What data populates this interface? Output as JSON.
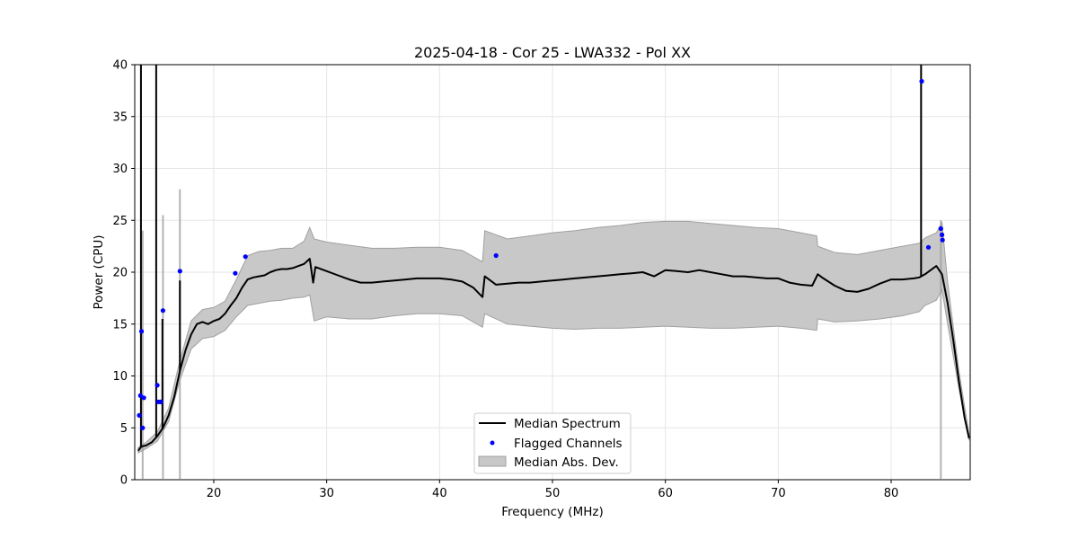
{
  "chart_data": {
    "type": "line",
    "title": "2025-04-18 - Cor 25 - LWA332 - Pol XX",
    "xlabel": "Frequency (MHz)",
    "ylabel": "Power (CPU)",
    "xlim": [
      13,
      87
    ],
    "ylim": [
      0,
      40
    ],
    "xticks": [
      20,
      30,
      40,
      50,
      60,
      70,
      80
    ],
    "yticks": [
      0,
      5,
      10,
      15,
      20,
      25,
      30,
      35,
      40
    ],
    "grid": true,
    "legend_position": "lower-center",
    "legend": [
      "Median Spectrum",
      "Flagged Channels",
      "Median Abs. Dev."
    ],
    "colors": {
      "median": "#000000",
      "flagged": "#0000ff",
      "band_fill": "#c8c8c8",
      "band_edge": "#a0a0a0"
    },
    "series": [
      {
        "name": "Median Spectrum",
        "x": [
          13.3,
          13.6,
          14.0,
          14.5,
          15.0,
          15.5,
          16.0,
          16.5,
          17.0,
          17.5,
          18.0,
          18.5,
          19.0,
          19.5,
          20.0,
          20.5,
          21.0,
          21.5,
          22.0,
          22.5,
          23.0,
          23.5,
          24.0,
          24.5,
          25.0,
          25.5,
          26.0,
          26.5,
          27.0,
          27.5,
          28.0,
          28.5,
          28.8,
          29.0,
          30.0,
          31.0,
          32.0,
          33.0,
          34.0,
          35.0,
          36.0,
          37.0,
          38.0,
          39.0,
          40.0,
          41.0,
          42.0,
          43.0,
          43.8,
          44.0,
          45.0,
          46.0,
          47.0,
          48.0,
          49.0,
          50.0,
          51.0,
          52.0,
          53.0,
          54.0,
          55.0,
          56.0,
          57.0,
          58.0,
          59.0,
          60.0,
          61.0,
          62.0,
          63.0,
          64.0,
          65.0,
          66.0,
          67.0,
          68.0,
          69.0,
          70.0,
          71.0,
          72.0,
          73.0,
          73.5,
          74.0,
          75.0,
          76.0,
          77.0,
          78.0,
          79.0,
          80.0,
          81.0,
          82.0,
          82.5,
          83.0,
          83.5,
          84.0,
          84.5,
          85.0,
          85.5,
          86.0,
          86.5,
          86.9
        ],
        "values": [
          2.8,
          3.2,
          3.3,
          3.6,
          4.2,
          5.0,
          6.2,
          8.0,
          10.5,
          12.5,
          14.0,
          15.0,
          15.2,
          15.0,
          15.3,
          15.5,
          16.0,
          16.8,
          17.5,
          18.5,
          19.3,
          19.5,
          19.6,
          19.7,
          20.0,
          20.2,
          20.3,
          20.3,
          20.4,
          20.6,
          20.8,
          21.3,
          19.0,
          20.5,
          20.1,
          19.7,
          19.3,
          19.0,
          19.0,
          19.1,
          19.2,
          19.3,
          19.4,
          19.4,
          19.4,
          19.3,
          19.1,
          18.5,
          17.6,
          19.6,
          18.8,
          18.9,
          19.0,
          19.0,
          19.1,
          19.2,
          19.3,
          19.4,
          19.5,
          19.6,
          19.7,
          19.8,
          19.9,
          20.0,
          19.6,
          20.2,
          20.1,
          20.0,
          20.2,
          20.0,
          19.8,
          19.6,
          19.6,
          19.5,
          19.4,
          19.4,
          19.0,
          18.8,
          18.7,
          19.8,
          19.4,
          18.7,
          18.2,
          18.1,
          18.4,
          18.9,
          19.3,
          19.3,
          19.4,
          19.5,
          19.8,
          20.2,
          20.6,
          19.8,
          17.0,
          13.5,
          9.5,
          6.0,
          4.0
        ]
      },
      {
        "name": "Median Abs. Dev.",
        "x": [
          13.3,
          14.0,
          15.0,
          16.0,
          17.0,
          18.0,
          19.0,
          20.0,
          21.0,
          22.0,
          23.0,
          24.0,
          25.0,
          26.0,
          27.0,
          28.0,
          28.5,
          28.9,
          30.0,
          32.0,
          34.0,
          36.0,
          38.0,
          40.0,
          42.0,
          43.8,
          44.0,
          46.0,
          48.0,
          50.0,
          52.0,
          54.0,
          56.0,
          58.0,
          60.0,
          62.0,
          64.0,
          66.0,
          68.0,
          70.0,
          72.0,
          73.4,
          73.5,
          75.0,
          77.0,
          79.0,
          81.0,
          82.5,
          83.0,
          84.0,
          84.5,
          85.0,
          86.0,
          86.9
        ],
        "upper": [
          3.1,
          3.6,
          4.6,
          6.9,
          11.5,
          15.3,
          16.4,
          16.6,
          17.2,
          19.3,
          21.6,
          22.0,
          22.1,
          22.3,
          22.3,
          23.0,
          24.3,
          23.2,
          22.9,
          22.6,
          22.3,
          22.3,
          22.4,
          22.4,
          22.1,
          21.0,
          24.0,
          23.2,
          23.5,
          23.8,
          24.0,
          24.3,
          24.5,
          24.8,
          24.9,
          24.9,
          24.7,
          24.5,
          24.3,
          24.2,
          23.8,
          23.5,
          22.5,
          21.9,
          21.7,
          22.1,
          22.5,
          22.8,
          23.3,
          23.8,
          24.8,
          19.0,
          10.5,
          4.4
        ],
        "lower": [
          2.6,
          3.0,
          3.7,
          5.6,
          9.6,
          12.6,
          13.6,
          13.8,
          14.4,
          15.7,
          16.8,
          17.0,
          17.2,
          17.3,
          17.5,
          17.6,
          17.8,
          15.3,
          15.7,
          15.5,
          15.5,
          15.8,
          16.0,
          16.0,
          15.8,
          14.7,
          16.0,
          15.0,
          14.8,
          14.6,
          14.5,
          14.6,
          14.6,
          14.7,
          14.8,
          14.7,
          14.6,
          14.6,
          14.7,
          14.8,
          14.6,
          14.4,
          15.5,
          15.2,
          15.3,
          15.5,
          15.8,
          16.2,
          16.8,
          17.3,
          18.3,
          15.0,
          8.8,
          3.8
        ]
      },
      {
        "name": "Flagged Channels",
        "type": "scatter",
        "x": [
          13.4,
          13.5,
          13.6,
          13.7,
          13.8,
          15.0,
          15.1,
          15.3,
          15.5,
          17.0,
          21.9,
          22.8,
          45.0,
          82.7,
          83.3,
          84.4,
          84.5,
          84.55
        ],
        "values": [
          6.2,
          8.1,
          14.3,
          5.0,
          7.9,
          9.1,
          7.5,
          7.5,
          16.3,
          20.1,
          19.9,
          21.5,
          21.6,
          38.4,
          22.4,
          24.2,
          23.6,
          23.1
        ]
      }
    ],
    "spikes": [
      {
        "x": 13.55,
        "y": 40
      },
      {
        "x": 14.9,
        "y": 40
      },
      {
        "x": 15.45,
        "y": 15.5
      },
      {
        "x": 17.0,
        "y": 19.2
      },
      {
        "x": 82.65,
        "y": 40
      }
    ],
    "band_spikes": [
      {
        "x": 13.7,
        "y": 24.0
      },
      {
        "x": 15.5,
        "y": 25.5
      },
      {
        "x": 17.0,
        "y": 28.0
      },
      {
        "x": 84.4,
        "y": 25.0
      }
    ]
  }
}
